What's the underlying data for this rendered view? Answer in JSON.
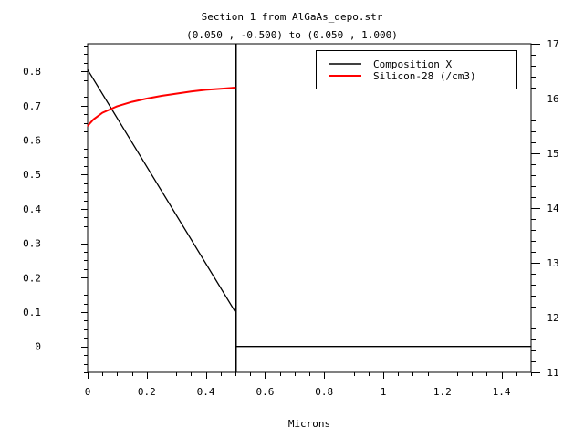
{
  "chart_data": {
    "type": "line",
    "title": "Section 1 from AlGaAs_depo.str",
    "subtitle": "(0.050 , -0.500) to (0.050 , 1.000)",
    "xlabel": "Microns",
    "ylabel_left": "",
    "ylabel_right": "",
    "xlim": [
      0,
      1.5
    ],
    "ylim_left": [
      -0.075,
      0.88
    ],
    "ylim_right": [
      11,
      17
    ],
    "x_ticks": [
      "0",
      "0.2",
      "0.4",
      "0.6",
      "0.8",
      "1",
      "1.2",
      "1.4"
    ],
    "x_tick_values": [
      0,
      0.2,
      0.4,
      0.6,
      0.8,
      1.0,
      1.2,
      1.4
    ],
    "y_ticks_left": [
      "0",
      "0.1",
      "0.2",
      "0.3",
      "0.4",
      "0.5",
      "0.6",
      "0.7",
      "0.8"
    ],
    "y_tick_values_left": [
      0,
      0.1,
      0.2,
      0.3,
      0.4,
      0.5,
      0.6,
      0.7,
      0.8
    ],
    "y_ticks_right": [
      "11",
      "12",
      "13",
      "14",
      "15",
      "16",
      "17"
    ],
    "y_tick_values_right": [
      11,
      12,
      13,
      14,
      15,
      16,
      17
    ],
    "grid": false,
    "legend_position": "top-right",
    "interface_x": 0.5,
    "series": [
      {
        "name": "Composition X",
        "color": "#000000",
        "axis": "left",
        "x": [
          0,
          0.5,
          0.5,
          0.5,
          1.5
        ],
        "y": [
          0.805,
          0.1,
          -0.075,
          0.0,
          0.0
        ]
      },
      {
        "name": "Silicon-28 (/cm3)",
        "color": "#ff0000",
        "axis": "right",
        "x": [
          0,
          0.02,
          0.05,
          0.1,
          0.15,
          0.2,
          0.25,
          0.3,
          0.35,
          0.4,
          0.45,
          0.5
        ],
        "y": [
          15.5,
          15.62,
          15.74,
          15.86,
          15.94,
          16.0,
          16.05,
          16.09,
          16.13,
          16.16,
          16.18,
          16.2
        ]
      }
    ]
  }
}
